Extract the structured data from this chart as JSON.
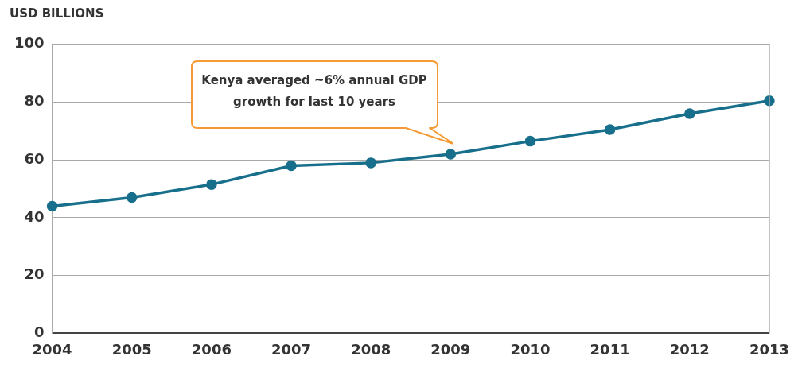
{
  "chart_data": {
    "type": "line",
    "ylabel": "USD BILLIONS",
    "categories": [
      "2004",
      "2005",
      "2006",
      "2007",
      "2008",
      "2009",
      "2010",
      "2011",
      "2012",
      "2013"
    ],
    "series": [
      {
        "color": "#176f8c",
        "values": [
          44,
          47,
          51.5,
          58,
          59,
          62,
          66.5,
          70.5,
          76,
          80.5
        ]
      }
    ],
    "ylim": [
      0,
      100
    ],
    "yticks": [
      0,
      20,
      40,
      60,
      80,
      100
    ],
    "grid": "y",
    "marker": "circle",
    "line_style": "solid",
    "legend": false,
    "annotations": [
      "Kenya averaged ~6% annual GDP growth for last 10 years"
    ]
  }
}
